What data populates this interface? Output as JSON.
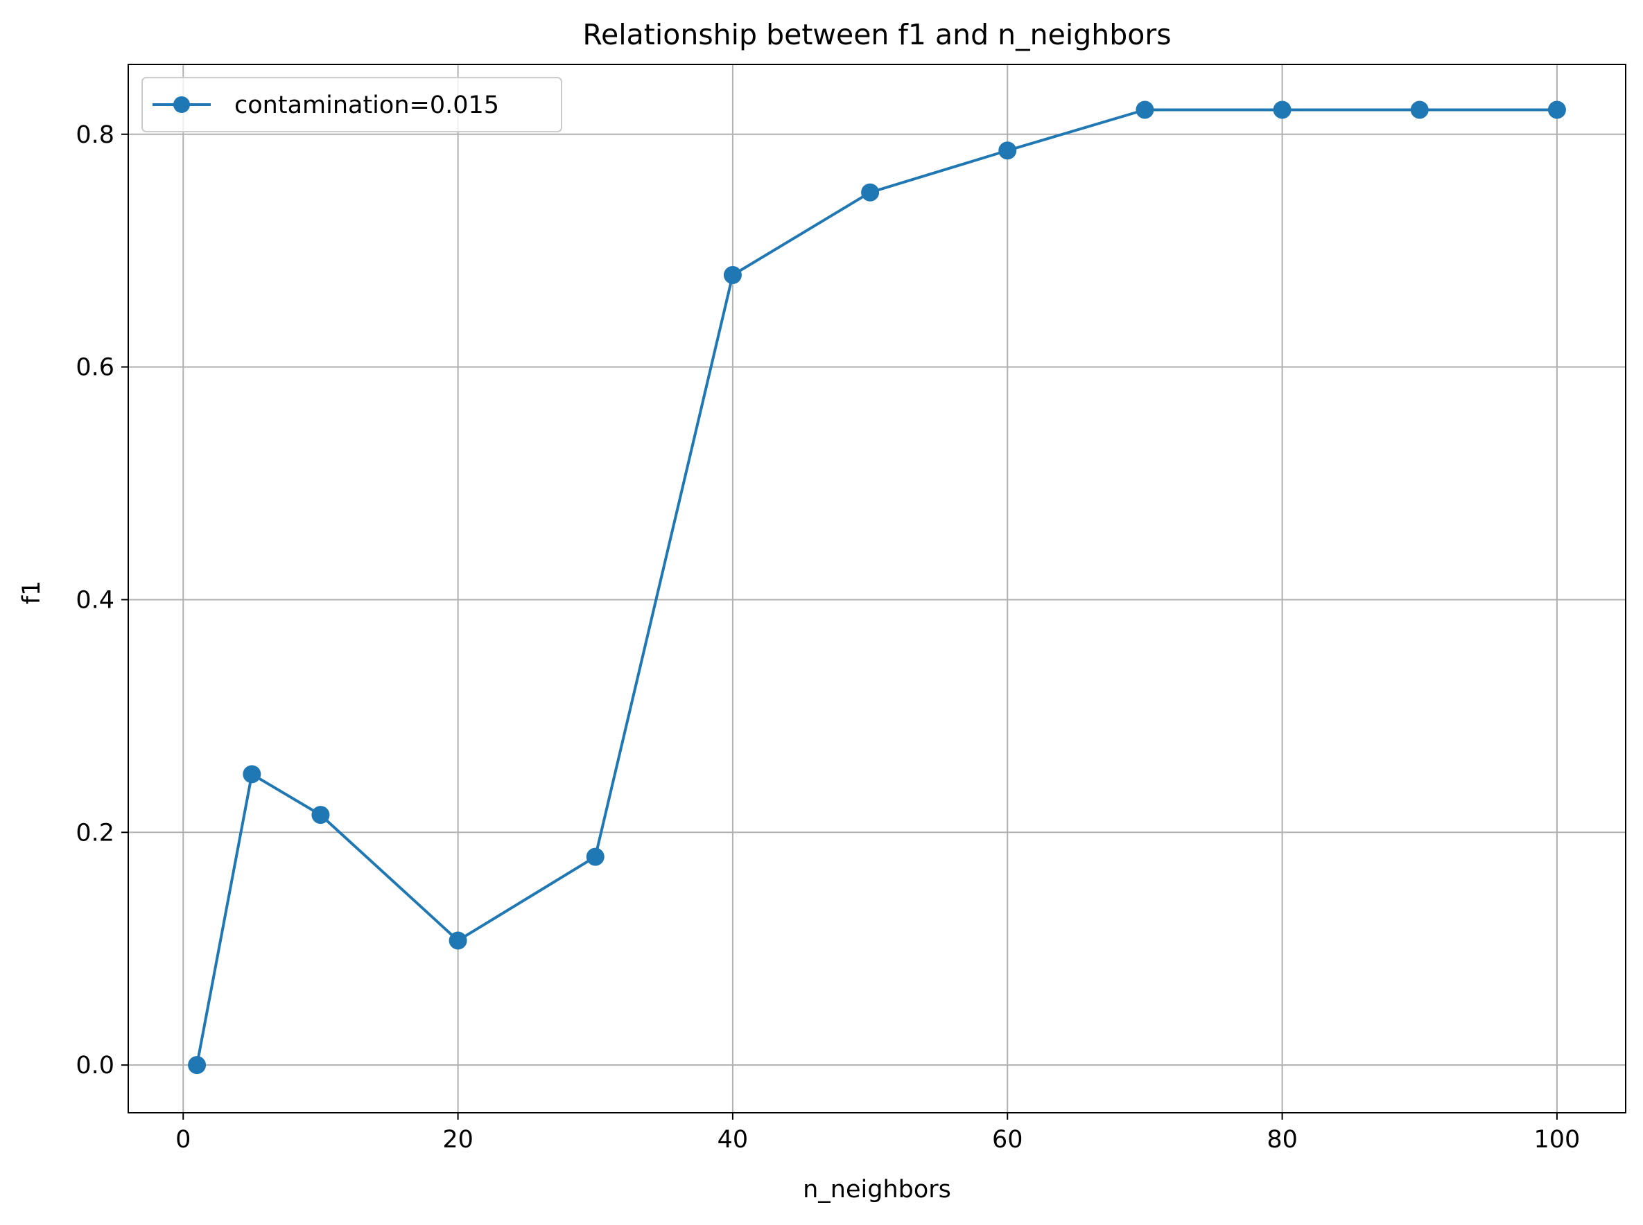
{
  "chart_data": {
    "type": "line",
    "title": "Relationship between f1 and n_neighbors",
    "xlabel": "n_neighbors",
    "ylabel": "f1",
    "xlim": [
      -4,
      105
    ],
    "ylim": [
      -0.041,
      0.86
    ],
    "x_ticks": [
      0,
      20,
      40,
      60,
      80,
      100
    ],
    "x_tick_labels": [
      "0",
      "20",
      "40",
      "60",
      "80",
      "100"
    ],
    "y_ticks": [
      0.0,
      0.2,
      0.4,
      0.6,
      0.8
    ],
    "y_tick_labels": [
      "0.0",
      "0.2",
      "0.4",
      "0.6",
      "0.8"
    ],
    "grid": true,
    "legend_position": "upper-left",
    "x": [
      1,
      5,
      10,
      20,
      30,
      40,
      50,
      60,
      70,
      80,
      90,
      100
    ],
    "series": [
      {
        "name": "contamination=0.015",
        "color": "#1f77b4",
        "marker": "circle",
        "values": [
          0.0,
          0.25,
          0.215,
          0.107,
          0.179,
          0.679,
          0.75,
          0.786,
          0.821,
          0.821,
          0.821,
          0.821
        ]
      }
    ],
    "grid_color": "#b0b0b0",
    "axis_color": "#000000"
  }
}
